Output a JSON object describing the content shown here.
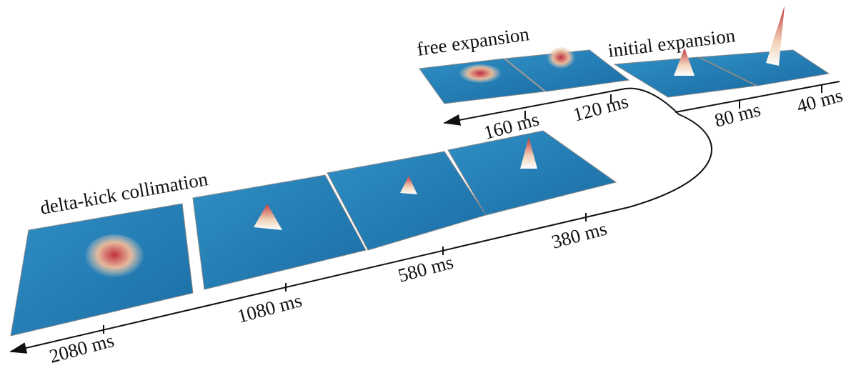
{
  "stages": {
    "free": "free expansion",
    "initial": "initial expansion",
    "dkc": "delta-kick collimation"
  },
  "times": {
    "t40": "40 ms",
    "t80": "80 ms",
    "t120": "120 ms",
    "t160": "160 ms",
    "t380": "380 ms",
    "t580": "580 ms",
    "t1080": "1080 ms",
    "t2080": "2080 ms"
  }
}
